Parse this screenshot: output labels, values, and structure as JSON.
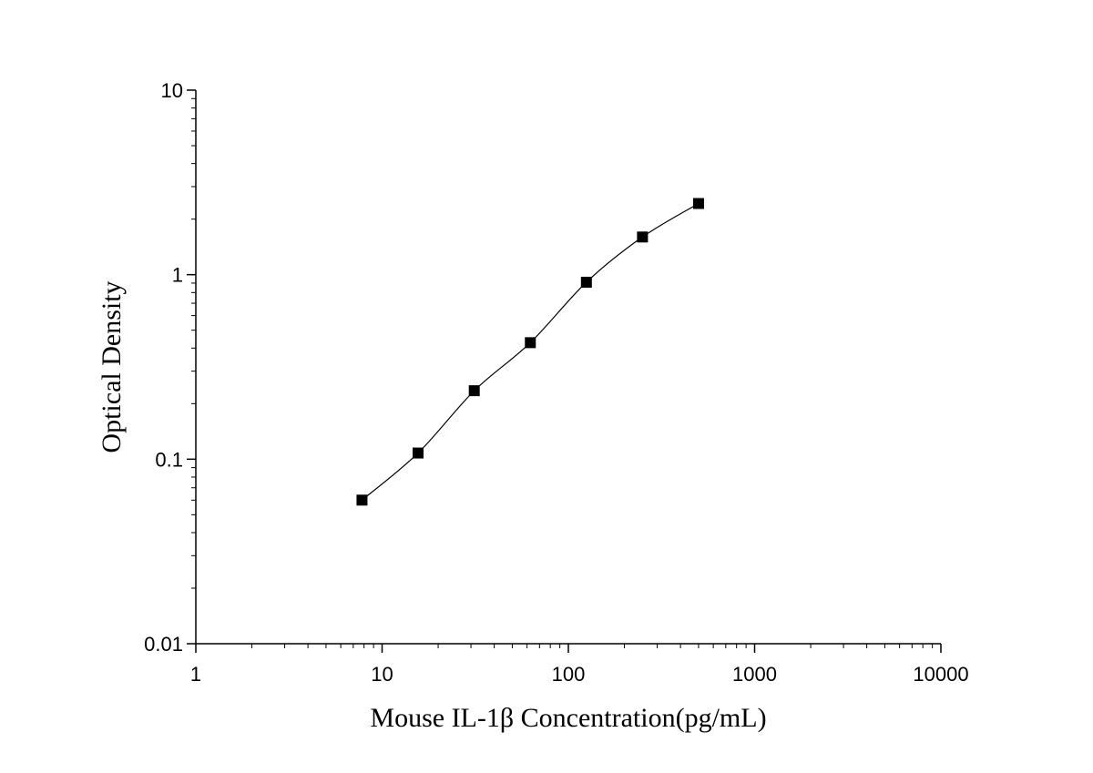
{
  "chart_data": {
    "type": "scatter",
    "title": "",
    "xlabel": "Mouse IL-1β Concentration(pg/mL)",
    "ylabel": "Optical Density",
    "x_scale": "log",
    "y_scale": "log",
    "xlim": [
      1,
      10000
    ],
    "ylim": [
      0.01,
      10
    ],
    "x_ticks": [
      "1",
      "10",
      "100",
      "1000",
      "10000"
    ],
    "y_ticks": [
      "0.01",
      "0.1",
      "1",
      "10"
    ],
    "grid": false,
    "legend": "none",
    "marker": "square",
    "color": "#000000",
    "fit_curve": true,
    "series": [
      {
        "x": [
          7.8,
          15.6,
          31.25,
          62.5,
          125,
          250,
          500
        ],
        "y": [
          0.06,
          0.108,
          0.235,
          0.428,
          0.91,
          1.6,
          2.43
        ]
      }
    ]
  }
}
